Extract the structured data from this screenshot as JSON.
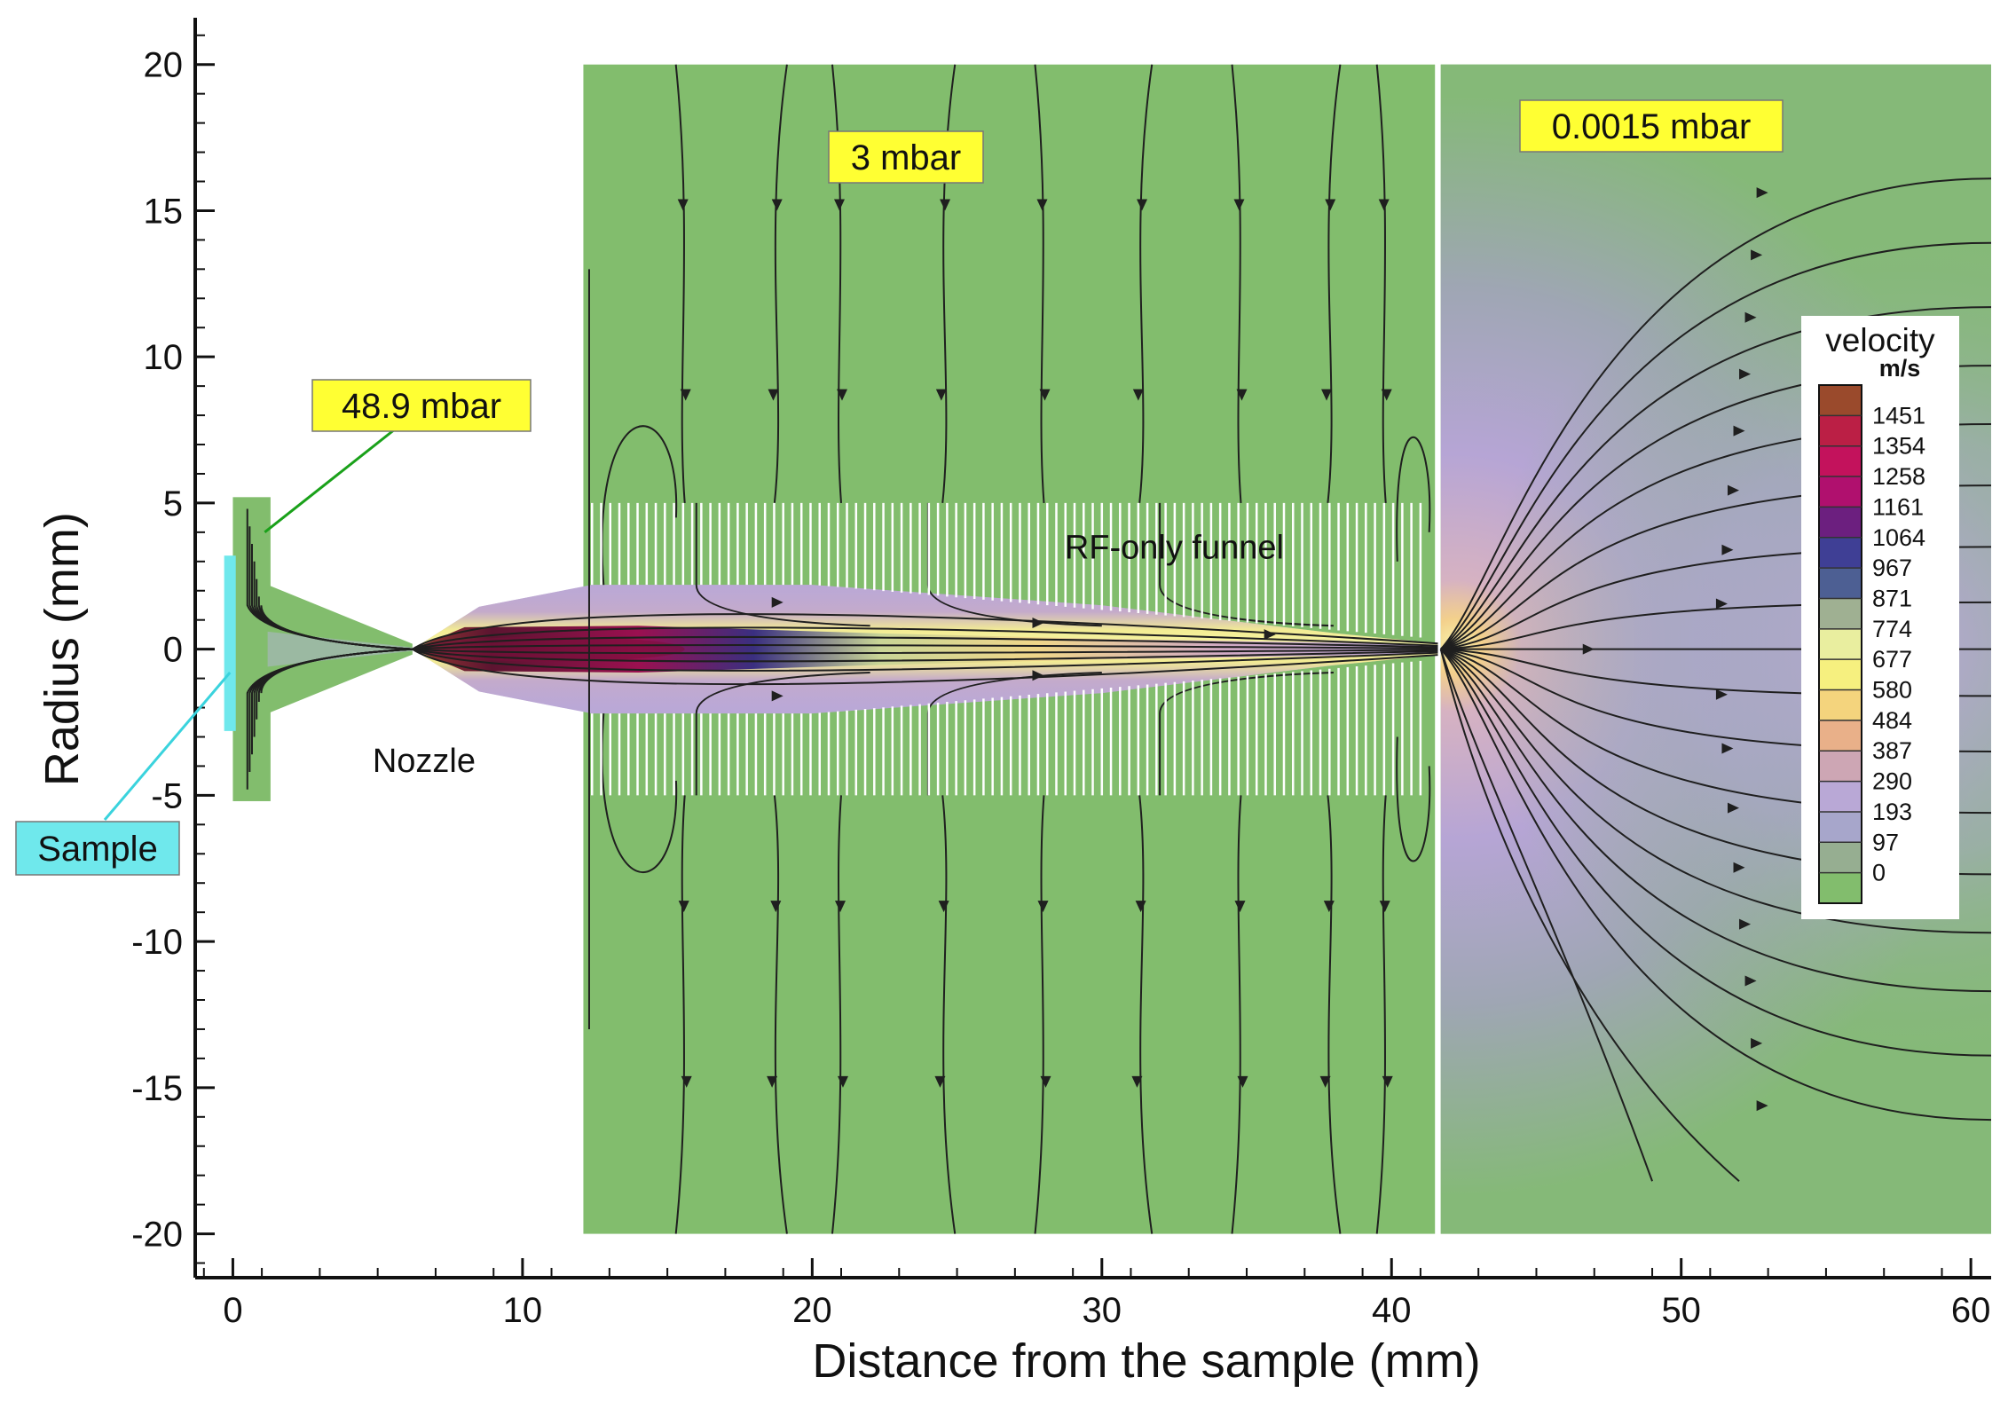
{
  "chart_data": {
    "type": "heatmap",
    "title": "",
    "xlabel": "Distance from the sample (mm)",
    "ylabel": "Radius (mm)",
    "xlim": [
      -1.3,
      60.7
    ],
    "ylim": [
      -21.5,
      21.6
    ],
    "x_ticks": [
      0,
      10,
      20,
      30,
      40,
      50,
      60
    ],
    "y_ticks": [
      20,
      15,
      10,
      5,
      0,
      -5,
      -10,
      -15,
      -20
    ],
    "grid": false,
    "colorbar": {
      "title": "velocity",
      "unit": "m/s",
      "levels": [
        1451,
        1354,
        1258,
        1161,
        1064,
        967,
        871,
        774,
        677,
        580,
        484,
        387,
        290,
        193,
        97,
        0
      ],
      "colors": [
        "#9a4a2c",
        "#bb1f45",
        "#c3125c",
        "#b0106e",
        "#6c1f7f",
        "#3f3f95",
        "#4d5f93",
        "#9fb092",
        "#e9ee9f",
        "#f6f07f",
        "#f4d47d",
        "#e9b089",
        "#cda6b4",
        "#b9a8d6",
        "#a7a6cb",
        "#96ae91",
        "#82bd6d"
      ]
    },
    "regions": [
      {
        "label": "48.9 mbar",
        "x_range": [
          0,
          1.3
        ]
      },
      {
        "label": "3 mbar",
        "x_range": [
          12.1,
          41.5
        ]
      },
      {
        "label": "0.0015 mbar",
        "x_range": [
          41.7,
          60.7
        ]
      }
    ],
    "annotations": [
      {
        "text": "48.9 mbar",
        "boxed": true,
        "box_color": "#ffff33"
      },
      {
        "text": "3 mbar",
        "boxed": true,
        "box_color": "#ffff33"
      },
      {
        "text": "0.0015 mbar",
        "boxed": true,
        "box_color": "#ffff33"
      },
      {
        "text": "RF-only funnel",
        "boxed": false
      },
      {
        "text": "Nozzle",
        "boxed": false
      },
      {
        "text": "Sample",
        "boxed": true,
        "box_color": "#6fe8ec"
      }
    ],
    "funnel": {
      "x_range": [
        12.4,
        41.0
      ],
      "y_outer": 5,
      "y_inner": 2.2
    },
    "nozzle_throat_x": 6.2
  },
  "colors": {
    "background_field": "#82bd6d",
    "label_box": "#ffff33",
    "sample_box": "#6fe8ec",
    "leader_green": "#1aa11a",
    "leader_cyan": "#3ad3dd"
  }
}
